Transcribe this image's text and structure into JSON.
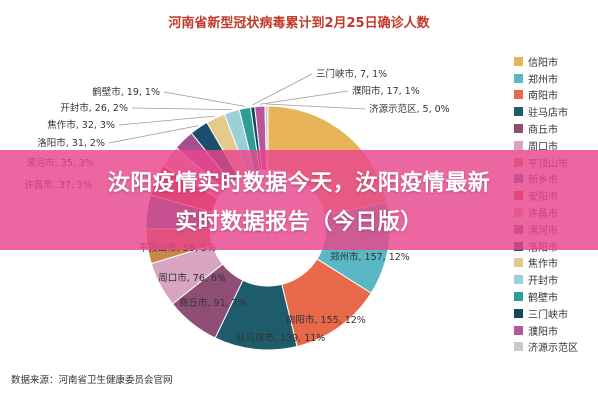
{
  "title": {
    "part1": "河南省新型冠状病毒",
    "part2": "累计到2月25日确诊人数"
  },
  "source_text": "数据来源：河南省卫生健康委员会官网",
  "overlay": {
    "line1": "汝阳疫情实时数据今天，汝阳疫情最新",
    "line2": "实时数据报告（今日版）"
  },
  "chart_data": {
    "type": "pie",
    "style": "donut",
    "title": "河南省新型冠状病毒累计到2月25日确诊人数",
    "series": [
      {
        "name": "信阳市",
        "value": 274,
        "color": "#e8b45a"
      },
      {
        "name": "郑州市",
        "value": 157,
        "color": "#5ab7c4"
      },
      {
        "name": "南阳市",
        "value": 155,
        "color": "#e8684a"
      },
      {
        "name": "驻马店市",
        "value": 139,
        "color": "#1f5c6b"
      },
      {
        "name": "商丘市",
        "value": 91,
        "color": "#8e4e76"
      },
      {
        "name": "周口市",
        "value": 76,
        "color": "#d7a5c0"
      },
      {
        "name": "平顶山市",
        "value": 58,
        "color": "#c8884a"
      },
      {
        "name": "新乡市",
        "value": 57,
        "color": "#3b7fa3"
      },
      {
        "name": "安阳市",
        "value": 53,
        "color": "#c94a3a"
      },
      {
        "name": "许昌市",
        "value": 37,
        "color": "#e8a0a8"
      },
      {
        "name": "漯河市",
        "value": 35,
        "color": "#a64f8e"
      },
      {
        "name": "洛阳市",
        "value": 31,
        "color": "#1e4e6e"
      },
      {
        "name": "焦作市",
        "value": 32,
        "color": "#e8c98c"
      },
      {
        "name": "开封市",
        "value": 26,
        "color": "#9ad1d8"
      },
      {
        "name": "鹤壁市",
        "value": 19,
        "color": "#2e9e94"
      },
      {
        "name": "三门峡市",
        "value": 7,
        "color": "#17495e"
      },
      {
        "name": "濮阳市",
        "value": 17,
        "color": "#b9559a"
      },
      {
        "name": "济源示范区",
        "value": 5,
        "color": "#c8ccd0"
      }
    ],
    "data_labels": [
      {
        "name": "三门峡市",
        "text": "三门峡市, 7, 1%"
      },
      {
        "name": "濮阳市",
        "text": "濮阳市, 17, 1%"
      },
      {
        "name": "济源示范区",
        "text": "济源示范区, 5, 0%"
      },
      {
        "name": "鹤壁市",
        "text": "鹤壁市, 19, 1%"
      },
      {
        "name": "开封市",
        "text": "开封市, 26, 2%"
      },
      {
        "name": "焦作市",
        "text": "焦作市, 32, 3%"
      },
      {
        "name": "洛阳市",
        "text": "洛阳市, 31, 2%"
      },
      {
        "name": "漯河市",
        "text": "漯河市, 35, 3%"
      },
      {
        "name": "许昌市",
        "text": "许昌市, 37, 3%"
      },
      {
        "name": "平顶山市",
        "text": "平顶山市, 58, 5%"
      },
      {
        "name": "周口市",
        "text": "周口市, 76, 6%"
      },
      {
        "name": "商丘市",
        "text": "商丘市, 91, 7%"
      },
      {
        "name": "驻马店市",
        "text": "驻马店市, 139, 11%"
      },
      {
        "name": "南阳市",
        "text": "南阳市, 155, 12%"
      },
      {
        "name": "郑州市",
        "text": "郑州市, 157, 12%"
      }
    ]
  }
}
